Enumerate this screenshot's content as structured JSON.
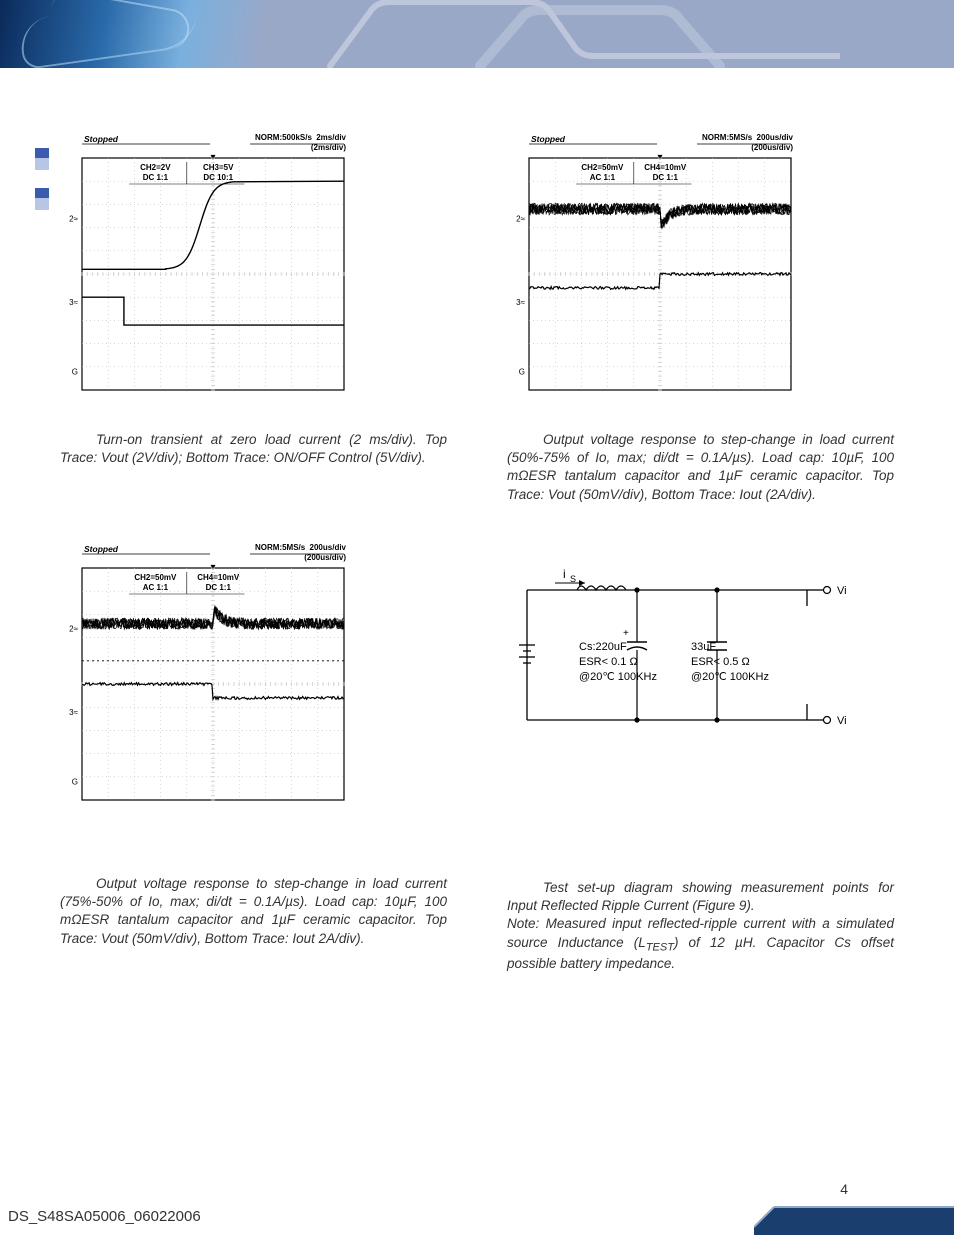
{
  "colors": {
    "banner_bg": "#9aa8c8",
    "banner_dark": "#1a4a8a",
    "footer_fill": "#1a3f6e",
    "page_bg": "#ffffff",
    "text": "#333333",
    "scope_border": "#000000",
    "scope_grid": "#bfbfbf",
    "scope_trace": "#000000",
    "circuit_line": "#000000"
  },
  "page_number": "4",
  "doc_id": "DS_S48SA05006_06022006",
  "scope_common": {
    "header_left": "Stopped",
    "marker_glyph": "▼"
  },
  "scope1": {
    "header_mid": "NORM:500kS/s",
    "header_right_top": "2ms/div",
    "header_right_bot": "(2ms/div)",
    "ch_left_top": "CH2=2V",
    "ch_left_bot": "DC 1:1",
    "ch_right_top": "CH3=5V",
    "ch_right_bot": "DC 10:1",
    "left_markers": [
      "2≈",
      "3≈",
      "G"
    ],
    "trace_top": {
      "type": "rise_curve",
      "x_start": 0.32,
      "y_low": 0.48,
      "y_high": 0.1
    },
    "trace_bot": {
      "type": "step_down",
      "x_step": 0.16,
      "y_high": 0.6,
      "y_low": 0.72
    }
  },
  "scope2": {
    "header_mid": "NORM:5MS/s",
    "header_right_top": "200us/div",
    "header_right_bot": "(200us/div)",
    "ch_left_top": "CH2=50mV",
    "ch_left_bot": "AC 1:1",
    "ch_right_top": "CH4=10mV",
    "ch_right_bot": "DC 1:1",
    "left_markers": [
      "2≈",
      "3≈",
      "G"
    ],
    "trace_top": {
      "type": "noisy_dip",
      "x_event": 0.5,
      "y_base": 0.22,
      "dip": 0.1,
      "noise": 0.025
    },
    "trace_bot": {
      "type": "step_up",
      "x_step": 0.5,
      "y_low": 0.56,
      "y_high": 0.5,
      "noise": 0.006
    }
  },
  "scope3": {
    "header_mid": "NORM:5MS/s",
    "header_right_top": "200us/div",
    "header_right_bot": "(200us/div)",
    "ch_left_top": "CH2=50mV",
    "ch_left_bot": "AC 1:1",
    "ch_right_top": "CH4=10mV",
    "ch_right_bot": "DC 1:1",
    "left_markers": [
      "2≈",
      "3≈",
      "G"
    ],
    "trace_top": {
      "type": "noisy_bump",
      "x_event": 0.5,
      "y_base": 0.24,
      "bump": 0.08,
      "noise": 0.025
    },
    "trace_mid": {
      "type": "dotted_baseline",
      "y": 0.4
    },
    "trace_bot": {
      "type": "step_down",
      "x_step": 0.5,
      "y_high": 0.5,
      "y_low": 0.56,
      "noise": 0.006
    }
  },
  "circuit": {
    "label_is": "i",
    "label_is_sub": "S",
    "cap1_line1": "Cs:220uF",
    "cap1_line2": "ESR< 0.1   Ω",
    "cap1_line3": "@20℃ 100KHz",
    "cap2_line1": "33uF",
    "cap2_line2": "ESR< 0.5  Ω",
    "cap2_line3": "@20℃ 100KHz",
    "out_top": "Vi(+)",
    "out_bot": "Vi(-)"
  },
  "captions": {
    "c1": "Turn-on transient at zero load current (2 ms/div). Top Trace: Vout (2V/div); Bottom Trace: ON/OFF Control (5V/div).",
    "c2_a": "Output voltage response to step-change in load current (50%-75% of Io, max; di/dt = 0.1A/µs). Load cap: 10µF, 100 m",
    "c2_b": "ESR tantalum capacitor and 1µF ceramic capacitor. Top Trace: Vout (50mV/div), Bottom Trace: Iout (2A/div).",
    "c3_a": "Output voltage response to step-change in load current (75%-50% of Io, max; di/dt = 0.1A/µs). Load cap: 10µF, 100 m",
    "c3_b": "ESR tantalum capacitor and 1µF ceramic capacitor. Top Trace: Vout (50mV/div), Bottom Trace: Iout 2A/div).",
    "c4_a": "Test set-up diagram showing measurement points for Input Reflected Ripple Current (Figure 9).",
    "c4_b": "Note: Measured input reflected-ripple current with a simulated source Inductance (L",
    "c4_sub": "TEST",
    "c4_c": ") of 12 µH. Capacitor Cs offset possible battery impedance."
  }
}
